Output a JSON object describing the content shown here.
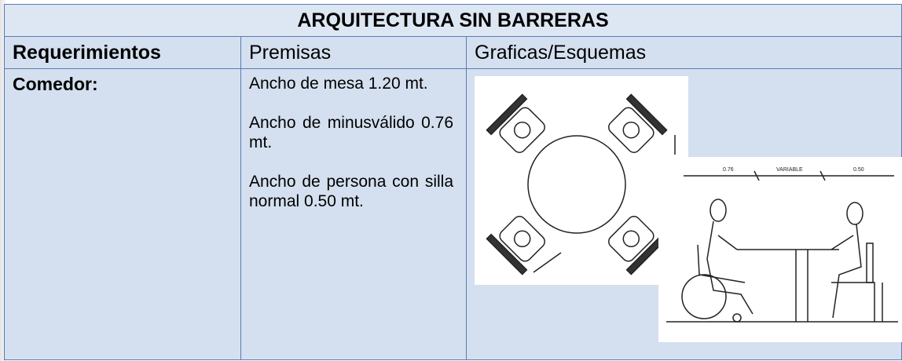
{
  "header": {
    "title": "ARQUITECTURA SIN BARRERAS"
  },
  "table": {
    "columns": [
      "Requerimientos",
      "Premisas",
      "Graficas/Esquemas"
    ],
    "rows": [
      {
        "requerimiento": "Comedor:",
        "premisas": [
          "Ancho de mesa 1.20 mt.",
          "Ancho de minusválido 0.76 mt.",
          "Ancho de persona con silla normal 0.50 mt."
        ],
        "sketch_labels": [
          "0.76",
          "VARIABLE",
          "0.50"
        ]
      }
    ]
  }
}
